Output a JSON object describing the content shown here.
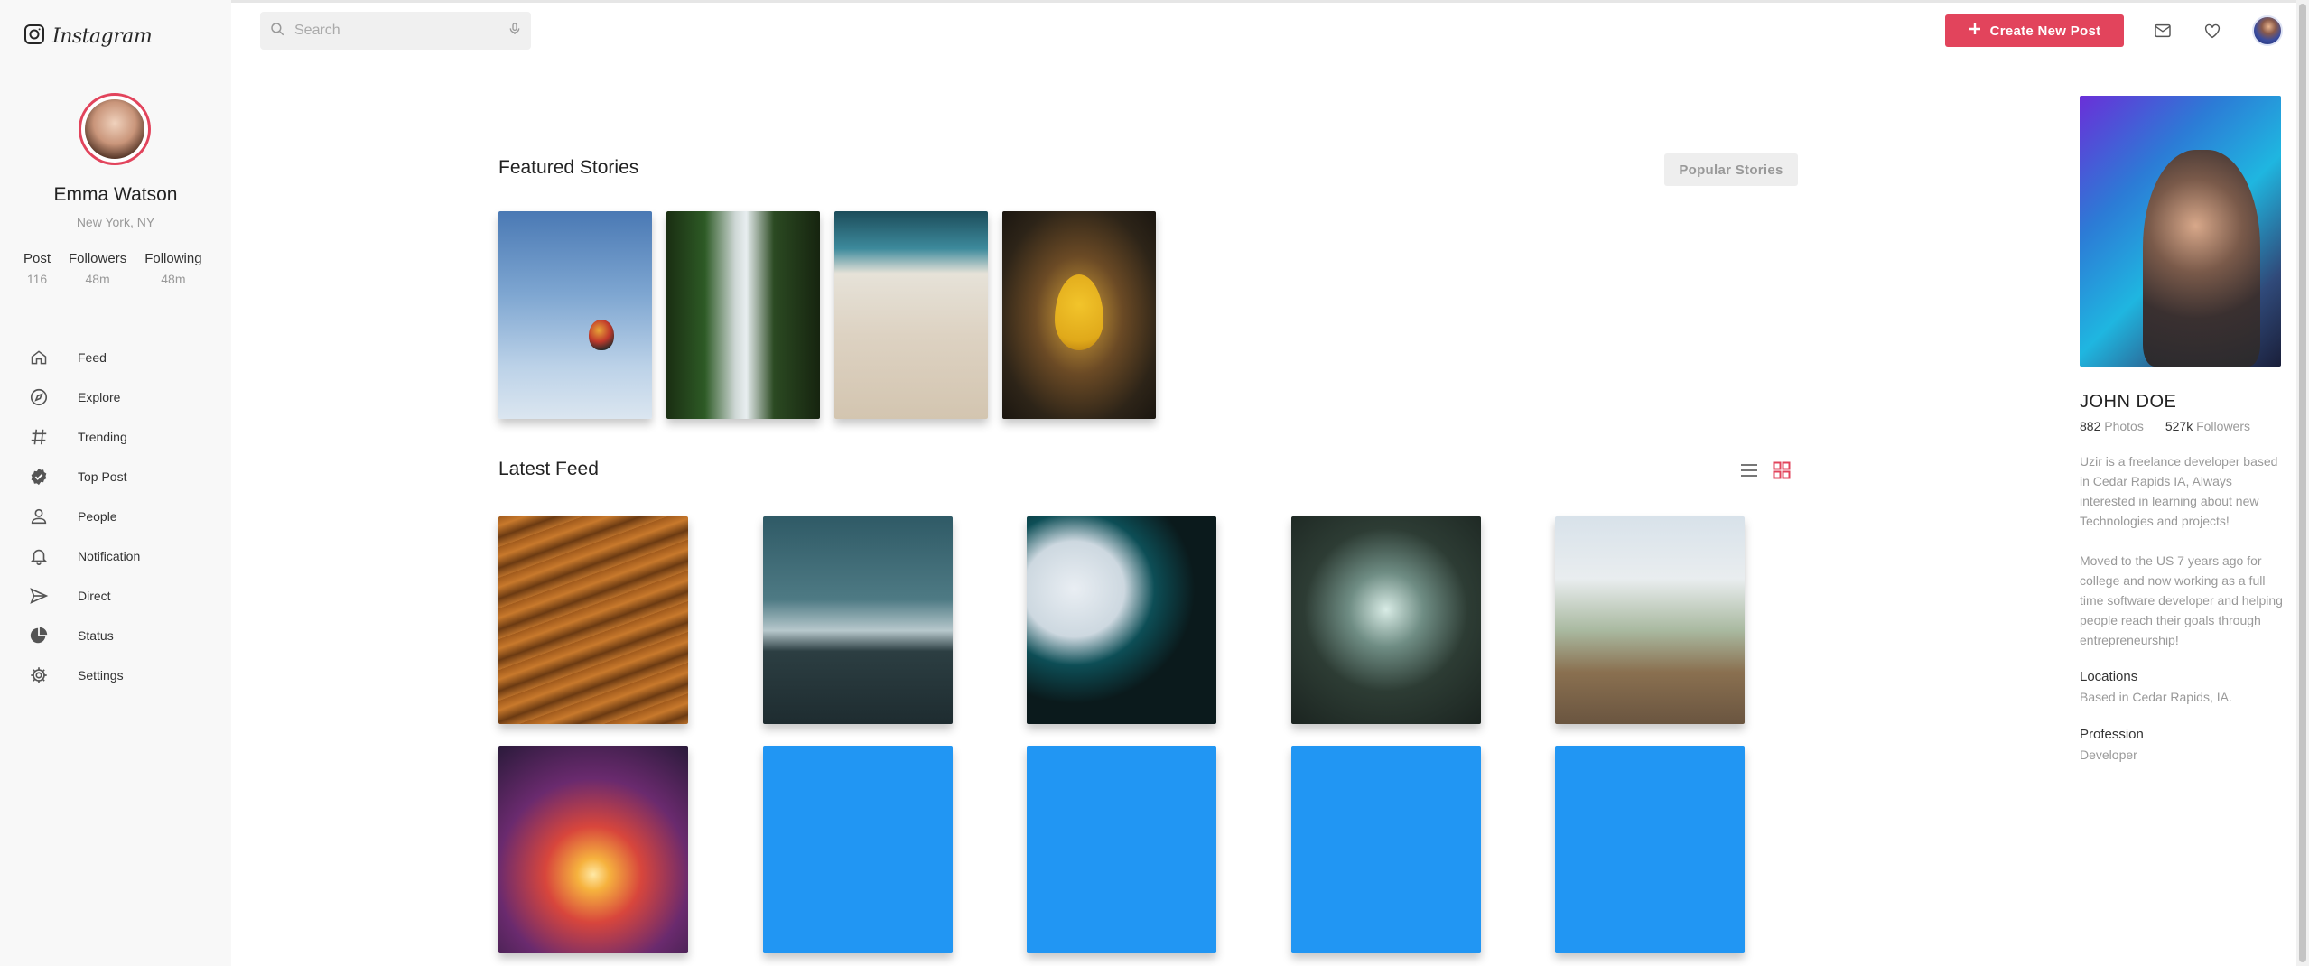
{
  "app": {
    "logo_text": "Instagram"
  },
  "user": {
    "name": "Emma Watson",
    "location": "New York, NY",
    "stats": [
      {
        "label": "Post",
        "value": "116"
      },
      {
        "label": "Followers",
        "value": "48m"
      },
      {
        "label": "Following",
        "value": "48m"
      }
    ]
  },
  "nav": [
    {
      "label": "Feed",
      "icon": "home-icon"
    },
    {
      "label": "Explore",
      "icon": "compass-icon"
    },
    {
      "label": "Trending",
      "icon": "hashtag-icon"
    },
    {
      "label": "Top Post",
      "icon": "verified-badge-icon"
    },
    {
      "label": "People",
      "icon": "person-icon"
    },
    {
      "label": "Notification",
      "icon": "bell-icon"
    },
    {
      "label": "Direct",
      "icon": "send-icon"
    },
    {
      "label": "Status",
      "icon": "pie-chart-icon"
    },
    {
      "label": "Settings",
      "icon": "gear-icon"
    }
  ],
  "search": {
    "placeholder": "Search",
    "value": ""
  },
  "header": {
    "create_label": "Create New Post"
  },
  "featured": {
    "title": "Featured Stories",
    "popular_label": "Popular Stories"
  },
  "latest": {
    "title": "Latest Feed"
  },
  "colors": {
    "accent": "#e2445c",
    "placeholder_blue": "#2196f3"
  },
  "profile": {
    "name": "JOHN DOE",
    "photos_count": "882",
    "photos_label": "Photos",
    "followers_count": "527k",
    "followers_label": "Followers",
    "bio1": "Uzir is a freelance developer based in Cedar Rapids IA, Always interested in learning about new Technologies and projects!",
    "bio2": "Moved to the US 7 years ago for college and now working as a full time software developer and helping people reach their goals through entrepreneurship!",
    "location_heading": "Locations",
    "location_text": "Based in Cedar Rapids, IA.",
    "profession_heading": "Profession",
    "profession_text": "Developer"
  }
}
